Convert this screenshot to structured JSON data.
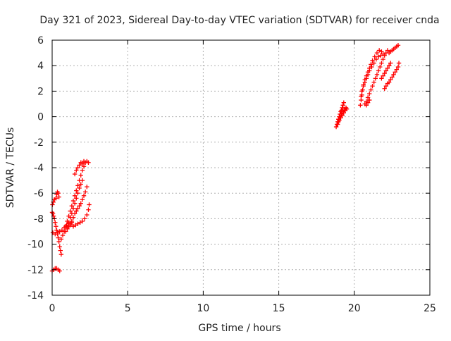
{
  "chart_data": {
    "type": "scatter",
    "title": "Day 321 of 2023, Sidereal Day-to-day VTEC variation (SDTVAR) for receiver cnda",
    "xlabel": "GPS time / hours",
    "ylabel": "SDTVAR / TECUs",
    "xlim": [
      0,
      25
    ],
    "ylim": [
      -14,
      6
    ],
    "xticks": [
      0,
      5,
      10,
      15,
      20,
      25
    ],
    "yticks": [
      -14,
      -12,
      -10,
      -8,
      -6,
      -4,
      -2,
      0,
      2,
      4,
      6
    ],
    "grid": true,
    "marker": "+",
    "color": "#ff0000",
    "series": [
      {
        "points": [
          [
            0.0,
            -7.5
          ],
          [
            0.05,
            -7.6
          ],
          [
            0.1,
            -7.8
          ],
          [
            0.15,
            -8.0
          ],
          [
            0.2,
            -8.3
          ],
          [
            0.25,
            -8.6
          ],
          [
            0.3,
            -8.9
          ],
          [
            0.35,
            -9.2
          ],
          [
            0.4,
            -9.5
          ],
          [
            0.45,
            -9.8
          ],
          [
            0.5,
            -10.2
          ],
          [
            0.55,
            -10.5
          ],
          [
            0.6,
            -10.8
          ],
          [
            0.02,
            -6.9
          ],
          [
            0.08,
            -6.7
          ],
          [
            0.15,
            -6.5
          ],
          [
            0.25,
            -6.4
          ],
          [
            0.3,
            -6.1
          ],
          [
            0.35,
            -5.9
          ],
          [
            0.4,
            -6.0
          ],
          [
            0.45,
            -6.3
          ],
          [
            0.05,
            -9.1
          ],
          [
            0.2,
            -9.2
          ],
          [
            0.35,
            -9.1
          ],
          [
            0.5,
            -9.0
          ],
          [
            0.65,
            -8.9
          ],
          [
            0.8,
            -8.7
          ],
          [
            0.95,
            -8.5
          ],
          [
            1.1,
            -8.4
          ],
          [
            0.0,
            -12.1
          ],
          [
            0.1,
            -12.0
          ],
          [
            0.2,
            -11.9
          ],
          [
            0.3,
            -11.9
          ],
          [
            0.4,
            -12.0
          ],
          [
            0.5,
            -12.1
          ],
          [
            0.6,
            -9.6
          ],
          [
            0.7,
            -9.3
          ],
          [
            0.8,
            -9.0
          ],
          [
            0.9,
            -8.6
          ],
          [
            1.0,
            -8.2
          ],
          [
            1.1,
            -7.8
          ],
          [
            1.2,
            -7.4
          ],
          [
            1.3,
            -7.0
          ],
          [
            1.4,
            -6.6
          ],
          [
            1.5,
            -6.2
          ],
          [
            1.6,
            -5.8
          ],
          [
            1.7,
            -5.4
          ],
          [
            1.8,
            -5.0
          ],
          [
            1.9,
            -4.6
          ],
          [
            2.0,
            -4.2
          ],
          [
            2.1,
            -3.9
          ],
          [
            0.9,
            -9.0
          ],
          [
            1.0,
            -8.7
          ],
          [
            1.1,
            -8.3
          ],
          [
            1.2,
            -7.9
          ],
          [
            1.3,
            -7.6
          ],
          [
            1.4,
            -7.2
          ],
          [
            1.5,
            -6.8
          ],
          [
            1.6,
            -6.4
          ],
          [
            1.7,
            -6.0
          ],
          [
            1.8,
            -5.6
          ],
          [
            1.9,
            -5.3
          ],
          [
            2.0,
            -5.0
          ],
          [
            1.2,
            -8.5
          ],
          [
            1.3,
            -8.2
          ],
          [
            1.4,
            -7.9
          ],
          [
            1.5,
            -7.6
          ],
          [
            1.6,
            -7.4
          ],
          [
            1.7,
            -7.2
          ],
          [
            1.8,
            -7.0
          ],
          [
            1.9,
            -6.8
          ],
          [
            2.0,
            -6.5
          ],
          [
            2.1,
            -6.2
          ],
          [
            2.2,
            -5.9
          ],
          [
            2.3,
            -5.5
          ],
          [
            1.4,
            -8.6
          ],
          [
            1.55,
            -8.5
          ],
          [
            1.7,
            -8.4
          ],
          [
            1.85,
            -8.3
          ],
          [
            2.0,
            -8.2
          ],
          [
            2.15,
            -8.0
          ],
          [
            2.3,
            -7.7
          ],
          [
            2.4,
            -7.3
          ],
          [
            2.45,
            -6.9
          ],
          [
            1.5,
            -4.5
          ],
          [
            1.6,
            -4.2
          ],
          [
            1.7,
            -4.0
          ],
          [
            1.8,
            -3.8
          ],
          [
            1.9,
            -3.6
          ],
          [
            2.0,
            -3.7
          ],
          [
            2.1,
            -3.5
          ],
          [
            2.2,
            -3.6
          ],
          [
            2.3,
            -3.5
          ],
          [
            2.4,
            -3.6
          ],
          [
            1.0,
            -8.8
          ],
          [
            1.1,
            -8.6
          ],
          [
            1.2,
            -8.4
          ],
          [
            1.3,
            -8.3
          ],
          [
            18.8,
            -0.8
          ],
          [
            18.85,
            -0.6
          ],
          [
            18.9,
            -0.4
          ],
          [
            18.95,
            -0.2
          ],
          [
            19.0,
            0.0
          ],
          [
            19.05,
            0.2
          ],
          [
            19.1,
            0.4
          ],
          [
            19.15,
            0.5
          ],
          [
            19.2,
            0.7
          ],
          [
            19.25,
            0.9
          ],
          [
            19.3,
            1.1
          ],
          [
            18.9,
            -0.6
          ],
          [
            18.95,
            -0.4
          ],
          [
            19.0,
            -0.3
          ],
          [
            19.1,
            -0.1
          ],
          [
            19.2,
            0.1
          ],
          [
            19.3,
            0.3
          ],
          [
            19.4,
            0.5
          ],
          [
            19.5,
            0.6
          ],
          [
            18.95,
            -0.2
          ],
          [
            19.05,
            0.0
          ],
          [
            19.15,
            0.2
          ],
          [
            19.25,
            0.4
          ],
          [
            19.35,
            0.6
          ],
          [
            19.45,
            0.7
          ],
          [
            20.4,
            0.9
          ],
          [
            20.45,
            1.3
          ],
          [
            20.5,
            1.7
          ],
          [
            20.55,
            2.1
          ],
          [
            20.6,
            2.5
          ],
          [
            20.7,
            2.9
          ],
          [
            20.8,
            3.2
          ],
          [
            20.9,
            3.5
          ],
          [
            21.0,
            3.8
          ],
          [
            21.1,
            4.1
          ],
          [
            21.2,
            4.4
          ],
          [
            21.35,
            4.7
          ],
          [
            21.5,
            5.0
          ],
          [
            21.65,
            5.2
          ],
          [
            21.8,
            5.1
          ],
          [
            21.9,
            4.9
          ],
          [
            20.45,
            1.6
          ],
          [
            20.5,
            2.0
          ],
          [
            20.6,
            2.4
          ],
          [
            20.7,
            2.7
          ],
          [
            20.8,
            3.0
          ],
          [
            20.9,
            3.3
          ],
          [
            21.0,
            3.6
          ],
          [
            21.15,
            3.9
          ],
          [
            21.3,
            4.2
          ],
          [
            21.45,
            4.5
          ],
          [
            21.6,
            4.7
          ],
          [
            21.75,
            4.8
          ],
          [
            20.8,
            1.2
          ],
          [
            20.9,
            1.5
          ],
          [
            21.0,
            1.8
          ],
          [
            21.1,
            2.1
          ],
          [
            21.2,
            2.4
          ],
          [
            21.3,
            2.7
          ],
          [
            21.4,
            3.0
          ],
          [
            21.5,
            3.3
          ],
          [
            21.6,
            3.6
          ],
          [
            21.7,
            3.9
          ],
          [
            21.8,
            4.2
          ],
          [
            21.9,
            4.5
          ],
          [
            22.0,
            4.8
          ],
          [
            22.1,
            5.0
          ],
          [
            22.2,
            5.2
          ],
          [
            22.3,
            5.0
          ],
          [
            22.4,
            5.1
          ],
          [
            22.5,
            5.2
          ],
          [
            22.6,
            5.3
          ],
          [
            22.7,
            5.4
          ],
          [
            22.8,
            5.5
          ],
          [
            22.9,
            5.6
          ],
          [
            21.8,
            3.0
          ],
          [
            21.9,
            3.2
          ],
          [
            22.0,
            3.4
          ],
          [
            22.1,
            3.6
          ],
          [
            22.2,
            3.8
          ],
          [
            22.3,
            4.0
          ],
          [
            22.4,
            4.2
          ],
          [
            22.0,
            2.2
          ],
          [
            22.1,
            2.4
          ],
          [
            22.2,
            2.6
          ],
          [
            22.3,
            2.7
          ],
          [
            22.4,
            2.9
          ],
          [
            22.5,
            3.1
          ],
          [
            22.6,
            3.3
          ],
          [
            22.7,
            3.5
          ],
          [
            22.8,
            3.7
          ],
          [
            22.9,
            3.9
          ],
          [
            22.95,
            4.2
          ],
          [
            20.7,
            1.0
          ],
          [
            20.8,
            0.9
          ],
          [
            20.9,
            1.1
          ],
          [
            21.0,
            1.3
          ]
        ]
      }
    ]
  }
}
